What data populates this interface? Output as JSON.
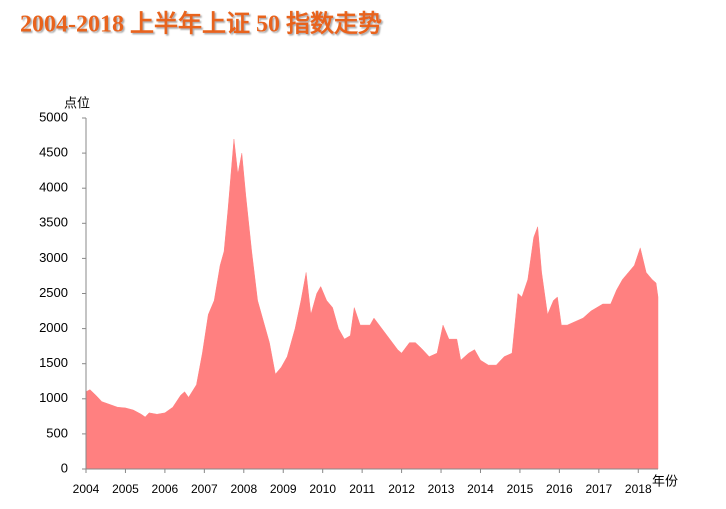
{
  "chart_data": {
    "type": "area",
    "title": "2004-2018 上半年上证 50 指数走势",
    "y_label": "点位",
    "x_label": "年份",
    "color": "#ff8080",
    "grid": false,
    "x": [
      2004.0,
      2004.1,
      2004.25,
      2004.4,
      2004.6,
      2004.8,
      2005.0,
      2005.2,
      2005.4,
      2005.5,
      2005.6,
      2005.8,
      2006.0,
      2006.2,
      2006.4,
      2006.5,
      2006.6,
      2006.8,
      2006.95,
      2007.1,
      2007.25,
      2007.4,
      2007.5,
      2007.6,
      2007.75,
      2007.85,
      2007.95,
      2008.05,
      2008.2,
      2008.35,
      2008.5,
      2008.65,
      2008.8,
      2008.95,
      2009.1,
      2009.3,
      2009.45,
      2009.58,
      2009.7,
      2009.85,
      2009.95,
      2010.1,
      2010.25,
      2010.4,
      2010.55,
      2010.7,
      2010.8,
      2010.95,
      2011.2,
      2011.3,
      2011.5,
      2011.7,
      2011.9,
      2012.0,
      2012.2,
      2012.35,
      2012.5,
      2012.7,
      2012.9,
      2013.05,
      2013.2,
      2013.4,
      2013.5,
      2013.7,
      2013.85,
      2014.0,
      2014.2,
      2014.4,
      2014.6,
      2014.8,
      2014.95,
      2015.05,
      2015.2,
      2015.35,
      2015.45,
      2015.55,
      2015.7,
      2015.85,
      2015.95,
      2016.05,
      2016.2,
      2016.4,
      2016.6,
      2016.8,
      2016.95,
      2017.1,
      2017.3,
      2017.45,
      2017.6,
      2017.75,
      2017.9,
      2018.05,
      2018.2,
      2018.35,
      2018.45,
      2018.5
    ],
    "values": [
      1100,
      1130,
      1050,
      960,
      920,
      880,
      870,
      840,
      780,
      740,
      800,
      780,
      800,
      880,
      1050,
      1100,
      1020,
      1200,
      1650,
      2200,
      2400,
      2900,
      3100,
      3700,
      4700,
      4200,
      4500,
      3900,
      3100,
      2400,
      2100,
      1800,
      1350,
      1450,
      1600,
      2000,
      2400,
      2800,
      2200,
      2500,
      2600,
      2400,
      2300,
      2000,
      1850,
      1900,
      2300,
      2050,
      2050,
      2150,
      2000,
      1850,
      1700,
      1650,
      1800,
      1800,
      1720,
      1600,
      1650,
      2050,
      1850,
      1850,
      1550,
      1650,
      1700,
      1550,
      1480,
      1480,
      1600,
      1650,
      2500,
      2450,
      2700,
      3300,
      3450,
      2800,
      2200,
      2400,
      2450,
      2050,
      2050,
      2100,
      2150,
      2250,
      2300,
      2350,
      2350,
      2550,
      2700,
      2800,
      2900,
      3150,
      2800,
      2700,
      2650,
      2450
    ],
    "xlim": [
      2004,
      2018.5
    ],
    "xticks": [
      2004,
      2005,
      2006,
      2007,
      2008,
      2009,
      2010,
      2011,
      2012,
      2013,
      2014,
      2015,
      2016,
      2017,
      2018
    ],
    "ylim": [
      0,
      5000
    ],
    "yticks": [
      0,
      500,
      1000,
      1500,
      2000,
      2500,
      3000,
      3500,
      4000,
      4500,
      5000
    ]
  }
}
